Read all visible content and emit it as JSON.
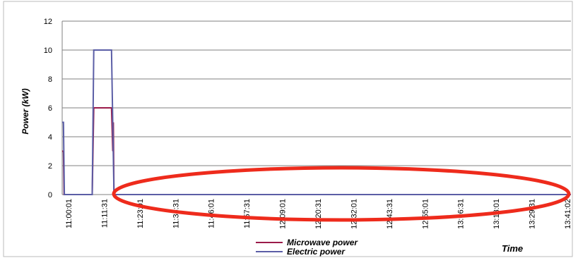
{
  "chart_data": {
    "type": "line",
    "ylabel": "Power (kW)",
    "xlabel": "Time",
    "ylim": [
      0,
      12
    ],
    "yticks": [
      0,
      2,
      4,
      6,
      8,
      10,
      12
    ],
    "grid": "horizontal",
    "legend_position": "bottom-center",
    "x_tick_labels": [
      "11:00:01",
      "11:11:31",
      "11:23:01",
      "11:34:31",
      "11:46:01",
      "11:57:31",
      "12:09:01",
      "12:20:31",
      "12:32:01",
      "12:43:31",
      "12:55:01",
      "13:06:31",
      "13:18:01",
      "13:29:31",
      "13:41:02"
    ],
    "x_range_minutes": [
      0,
      161
    ],
    "series": [
      {
        "name": "Microwave power",
        "color": "#9b1b4a",
        "points": [
          [
            0.0,
            3
          ],
          [
            0.4,
            3
          ],
          [
            0.6,
            0
          ],
          [
            9.5,
            0
          ],
          [
            10.0,
            6
          ],
          [
            15.6,
            6
          ],
          [
            16.0,
            3
          ],
          [
            16.2,
            5
          ],
          [
            16.4,
            0
          ],
          [
            161,
            0
          ]
        ]
      },
      {
        "name": "Electric power",
        "color": "#5b5ea6",
        "points": [
          [
            0.0,
            5
          ],
          [
            0.4,
            5
          ],
          [
            0.7,
            0
          ],
          [
            9.5,
            0
          ],
          [
            10.0,
            10
          ],
          [
            15.6,
            10
          ],
          [
            16.4,
            0
          ],
          [
            161,
            0
          ]
        ]
      }
    ],
    "annotation": {
      "shape": "ellipse",
      "color": "#ee2b1c"
    }
  }
}
